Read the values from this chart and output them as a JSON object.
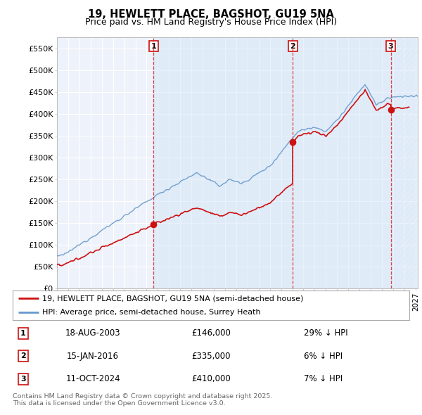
{
  "title": "19, HEWLETT PLACE, BAGSHOT, GU19 5NA",
  "subtitle": "Price paid vs. HM Land Registry's House Price Index (HPI)",
  "ylabel_values": [
    "£0",
    "£50K",
    "£100K",
    "£150K",
    "£200K",
    "£250K",
    "£300K",
    "£350K",
    "£400K",
    "£450K",
    "£500K",
    "£550K"
  ],
  "ylim": [
    0,
    575000
  ],
  "yticks": [
    0,
    50000,
    100000,
    150000,
    200000,
    250000,
    300000,
    350000,
    400000,
    450000,
    500000,
    550000
  ],
  "xlim_start": 1995.3,
  "xlim_end": 2027.2,
  "sale_dates": [
    2003.62,
    2016.04,
    2024.79
  ],
  "sale_prices": [
    146000,
    335000,
    410000
  ],
  "sale_labels": [
    "1",
    "2",
    "3"
  ],
  "vline_color": "#dd2222",
  "sale_color": "#cc1111",
  "hpi_color": "#6699cc",
  "bg_color": "#eef2fa",
  "grid_color": "#ffffff",
  "legend1": "19, HEWLETT PLACE, BAGSHOT, GU19 5NA (semi-detached house)",
  "legend2": "HPI: Average price, semi-detached house, Surrey Heath",
  "table_rows": [
    {
      "num": "1",
      "date": "18-AUG-2003",
      "price": "£146,000",
      "rel": "29% ↓ HPI"
    },
    {
      "num": "2",
      "date": "15-JAN-2016",
      "price": "£335,000",
      "rel": "6% ↓ HPI"
    },
    {
      "num": "3",
      "date": "11-OCT-2024",
      "price": "£410,000",
      "rel": "7% ↓ HPI"
    }
  ],
  "footnote": "Contains HM Land Registry data © Crown copyright and database right 2025.\nThis data is licensed under the Open Government Licence v3.0.",
  "hatch_start": 2025.0,
  "blue_shade_start": 2003.62,
  "blue_shade_end": 2025.0
}
